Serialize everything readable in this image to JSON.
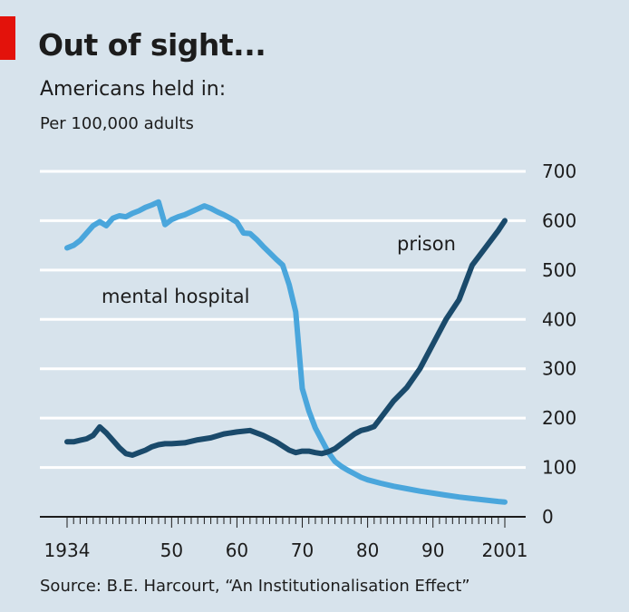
{
  "header": {
    "title": "Out of sight...",
    "subtitle": "Americans held in:",
    "unit": "Per 100,000 adults"
  },
  "footer": {
    "source": "Source: B.E. Harcourt, “An Institutionalisation Effect”"
  },
  "colors": {
    "background": "#d7e3ec",
    "accent": "#e3120b",
    "mental_hospital": "#4aa6dc",
    "prison": "#1a4a6b",
    "gridline": "#ffffff"
  },
  "chart_data": {
    "type": "line",
    "xlim": [
      1934,
      2001
    ],
    "ylim": [
      0,
      700
    ],
    "yticks": [
      0,
      100,
      200,
      300,
      400,
      500,
      600,
      700
    ],
    "ytick_labels": [
      "0",
      "100",
      "200",
      "300",
      "400",
      "500",
      "600",
      "700"
    ],
    "xtick_labels": [
      {
        "value": 1934,
        "label": "1934"
      },
      {
        "value": 1950,
        "label": "50"
      },
      {
        "value": 1960,
        "label": "60"
      },
      {
        "value": 1970,
        "label": "70"
      },
      {
        "value": 1980,
        "label": "80"
      },
      {
        "value": 1990,
        "label": "90"
      },
      {
        "value": 2001,
        "label": "2001"
      }
    ],
    "grid": true,
    "y_axis_side": "right",
    "series": [
      {
        "name": "mental hospital",
        "color": "#4aa6dc",
        "x": [
          1934,
          1935,
          1936,
          1937,
          1938,
          1939,
          1940,
          1941,
          1942,
          1943,
          1944,
          1945,
          1946,
          1947,
          1948,
          1949,
          1950,
          1951,
          1952,
          1953,
          1954,
          1955,
          1956,
          1957,
          1958,
          1959,
          1960,
          1961,
          1962,
          1963,
          1964,
          1965,
          1966,
          1967,
          1968,
          1969,
          1970,
          1971,
          1972,
          1973,
          1974,
          1975,
          1976,
          1977,
          1978,
          1979,
          1980,
          1982,
          1984,
          1986,
          1988,
          1990,
          1992,
          1994,
          1996,
          1998,
          2000,
          2001
        ],
        "y": [
          545,
          550,
          560,
          575,
          590,
          598,
          590,
          605,
          610,
          608,
          615,
          620,
          627,
          632,
          638,
          592,
          602,
          608,
          612,
          618,
          624,
          630,
          625,
          618,
          612,
          605,
          597,
          575,
          574,
          562,
          548,
          535,
          522,
          510,
          470,
          415,
          260,
          215,
          180,
          155,
          130,
          112,
          102,
          94,
          87,
          80,
          75,
          68,
          62,
          57,
          52,
          48,
          44,
          40,
          37,
          34,
          31,
          30
        ]
      },
      {
        "name": "prison",
        "color": "#1a4a6b",
        "x": [
          1934,
          1935,
          1936,
          1937,
          1938,
          1939,
          1940,
          1941,
          1942,
          1943,
          1944,
          1945,
          1946,
          1947,
          1948,
          1949,
          1950,
          1952,
          1954,
          1956,
          1958,
          1960,
          1962,
          1964,
          1966,
          1968,
          1969,
          1970,
          1971,
          1972,
          1973,
          1974,
          1975,
          1976,
          1977,
          1978,
          1979,
          1980,
          1981,
          1982,
          1984,
          1986,
          1988,
          1990,
          1992,
          1994,
          1996,
          1998,
          2000,
          2001
        ],
        "y": [
          152,
          152,
          155,
          158,
          165,
          182,
          170,
          155,
          140,
          128,
          125,
          130,
          135,
          142,
          146,
          148,
          148,
          150,
          156,
          160,
          168,
          172,
          175,
          165,
          152,
          135,
          130,
          133,
          133,
          130,
          128,
          132,
          138,
          148,
          158,
          168,
          175,
          178,
          183,
          200,
          235,
          262,
          300,
          350,
          400,
          440,
          510,
          545,
          580,
          600
        ]
      }
    ],
    "annotations": [
      {
        "text": "mental hospital",
        "series": "mental hospital"
      },
      {
        "text": "prison",
        "series": "prison"
      }
    ]
  }
}
